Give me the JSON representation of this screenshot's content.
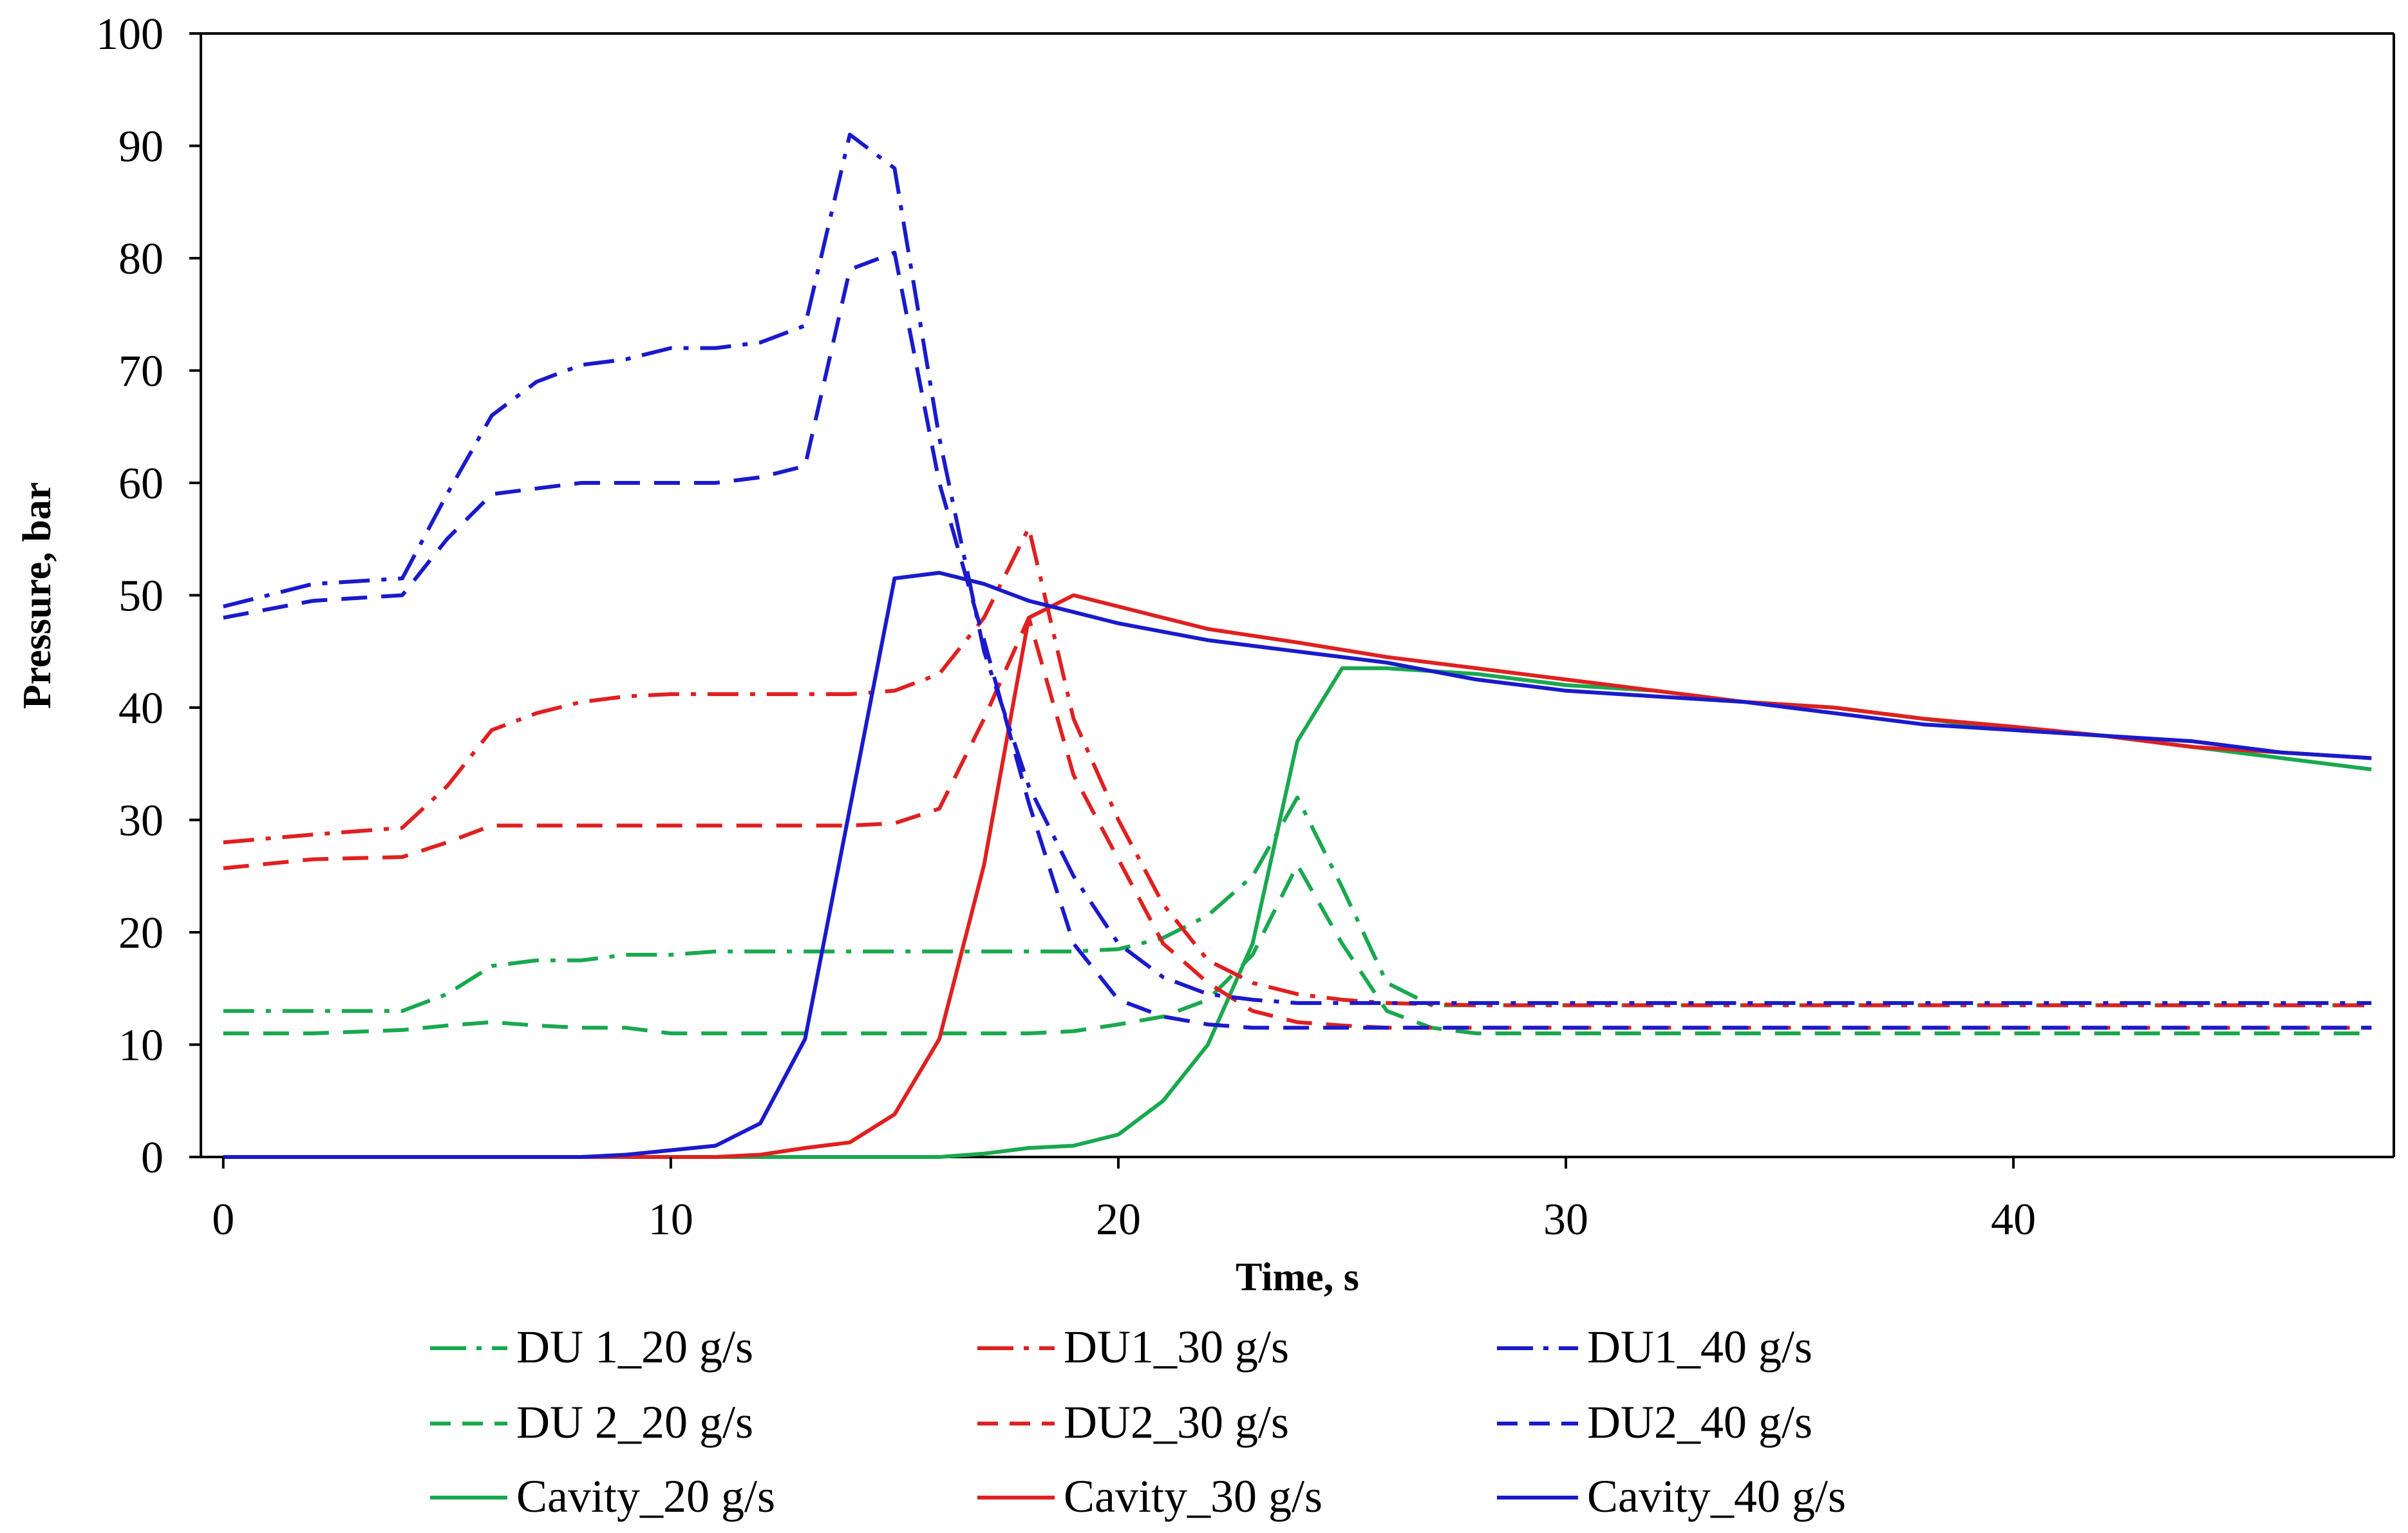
{
  "chart_data": {
    "type": "line",
    "title": "",
    "xlabel": "Time, s",
    "ylabel": "Pressure, bar",
    "xlim": [
      -0.5,
      48.5
    ],
    "ylim": [
      0,
      100
    ],
    "xticks": [
      0,
      10,
      20,
      30,
      40
    ],
    "yticks": [
      0,
      10,
      20,
      30,
      40,
      50,
      60,
      70,
      80,
      90,
      100
    ],
    "grid": false,
    "legend_position": "bottom",
    "series": [
      {
        "name": "DU 1_20 g/s",
        "color": "#1aa84f",
        "dash": "dashdot",
        "x": [
          0,
          2,
          4,
          5,
          6,
          7,
          8,
          9,
          10,
          11,
          12,
          13,
          14,
          15,
          16,
          17,
          18,
          19,
          20,
          21,
          22,
          23,
          24,
          25,
          26,
          27,
          28,
          30,
          32,
          34,
          36,
          38,
          40,
          42,
          44,
          46,
          48
        ],
        "y": [
          13,
          13,
          13,
          14.5,
          17,
          17.5,
          17.5,
          18,
          18,
          18.3,
          18.3,
          18.3,
          18.3,
          18.3,
          18.3,
          18.3,
          18.3,
          18.3,
          18.5,
          19.5,
          21.5,
          25,
          32,
          24,
          15.5,
          13.5,
          13.5,
          13.5,
          13.5,
          13.5,
          13.5,
          13.5,
          13.5,
          13.5,
          13.5,
          13.5,
          13.5
        ]
      },
      {
        "name": "DU 2_20 g/s",
        "color": "#1aa84f",
        "dash": "dash",
        "x": [
          0,
          2,
          4,
          5,
          6,
          7,
          8,
          9,
          10,
          12,
          14,
          16,
          18,
          19,
          20,
          21,
          22,
          23,
          24,
          25,
          26,
          27,
          28,
          30,
          32,
          34,
          36,
          38,
          40,
          42,
          44,
          46,
          48
        ],
        "y": [
          11,
          11,
          11.3,
          11.7,
          12,
          11.7,
          11.5,
          11.5,
          11,
          11,
          11,
          11,
          11,
          11.2,
          11.8,
          12.5,
          14,
          18,
          26,
          19,
          13,
          11.5,
          11,
          11,
          11,
          11,
          11,
          11,
          11,
          11,
          11,
          11,
          11
        ]
      },
      {
        "name": "Cavity_20 g/s",
        "color": "#1aa84f",
        "dash": "solid",
        "x": [
          0,
          14,
          16,
          17,
          18,
          19,
          20,
          21,
          22,
          23,
          24,
          25,
          26,
          28,
          30,
          32,
          34,
          36,
          38,
          40,
          42,
          44,
          46,
          48
        ],
        "y": [
          0,
          0,
          0,
          0.3,
          0.8,
          1,
          2,
          5,
          10,
          19,
          37,
          43.5,
          43.5,
          43,
          42,
          41.5,
          40.5,
          40,
          39,
          38,
          37.5,
          36.5,
          35.5,
          34.5
        ]
      },
      {
        "name": "DU1_30 g/s",
        "color": "#e02020",
        "dash": "dashdot",
        "x": [
          0,
          2,
          4,
          5,
          6,
          7,
          8,
          9,
          10,
          12,
          14,
          15,
          16,
          17,
          18,
          19,
          20,
          21,
          22,
          23,
          24,
          25,
          26,
          28,
          30,
          32,
          34,
          36,
          38,
          40,
          42,
          44,
          46,
          48
        ],
        "y": [
          28,
          28.7,
          29.3,
          33,
          38,
          39.5,
          40.5,
          41,
          41.2,
          41.2,
          41.2,
          41.5,
          43,
          48,
          56,
          39,
          30,
          22.5,
          17.5,
          15.5,
          14.5,
          14,
          13.7,
          13.5,
          13.5,
          13.5,
          13.5,
          13.5,
          13.5,
          13.5,
          13.5,
          13.5,
          13.5,
          13.5
        ]
      },
      {
        "name": "DU2_30 g/s",
        "color": "#e02020",
        "dash": "dash",
        "x": [
          0,
          2,
          4,
          5,
          6,
          7,
          8,
          10,
          12,
          14,
          15,
          16,
          17,
          18,
          19,
          20,
          21,
          22,
          23,
          24,
          25,
          26,
          28,
          30,
          32,
          34,
          36,
          38,
          40,
          42,
          44,
          46,
          48
        ],
        "y": [
          25.7,
          26.5,
          26.7,
          28,
          29.5,
          29.5,
          29.5,
          29.5,
          29.5,
          29.5,
          29.7,
          31,
          39,
          48,
          34,
          26.5,
          19,
          15.5,
          13,
          12,
          11.7,
          11.5,
          11.5,
          11.5,
          11.5,
          11.5,
          11.5,
          11.5,
          11.5,
          11.5,
          11.5,
          11.5,
          11.5
        ]
      },
      {
        "name": "Cavity_30 g/s",
        "color": "#e02020",
        "dash": "solid",
        "x": [
          0,
          11,
          12,
          13,
          14,
          15,
          16,
          17,
          18,
          19,
          20,
          22,
          24,
          26,
          28,
          30,
          32,
          34,
          36,
          38,
          40,
          42,
          44,
          46,
          48
        ],
        "y": [
          0,
          0,
          0.2,
          0.8,
          1.3,
          3.8,
          10.5,
          26,
          48,
          50,
          49,
          47,
          45.8,
          44.5,
          43.5,
          42.5,
          41.5,
          40.5,
          40,
          39,
          38.3,
          37.5,
          36.5,
          36,
          35.5
        ]
      },
      {
        "name": "DU1_40 g/s",
        "color": "#1a1acc",
        "dash": "dashdot",
        "x": [
          0,
          2,
          4,
          5,
          6,
          7,
          8,
          9,
          10,
          11,
          12,
          13,
          14,
          15,
          16,
          17,
          18,
          19,
          20,
          21,
          22,
          23,
          24,
          26,
          28,
          30,
          32,
          34,
          36,
          38,
          40,
          42,
          44,
          46,
          48
        ],
        "y": [
          49,
          51,
          51.5,
          59,
          66,
          69,
          70.5,
          71,
          72,
          72,
          72.5,
          74,
          91,
          88,
          64,
          45,
          33,
          25,
          19,
          16,
          14.5,
          14,
          13.7,
          13.7,
          13.7,
          13.7,
          13.7,
          13.7,
          13.7,
          13.7,
          13.7,
          13.7,
          13.7,
          13.7,
          13.7
        ]
      },
      {
        "name": "DU2_40 g/s",
        "color": "#1a1acc",
        "dash": "dash",
        "x": [
          0,
          2,
          4,
          5,
          6,
          7,
          8,
          9,
          10,
          11,
          12,
          13,
          14,
          15,
          16,
          17,
          18,
          19,
          20,
          21,
          22,
          23,
          24,
          26,
          28,
          30,
          32,
          34,
          36,
          38,
          40,
          42,
          44,
          46,
          48
        ],
        "y": [
          48,
          49.5,
          50,
          55,
          59,
          59.5,
          60,
          60,
          60,
          60,
          60.5,
          61.5,
          79,
          80.5,
          60,
          46,
          31.5,
          19,
          14,
          12.5,
          11.8,
          11.5,
          11.5,
          11.5,
          11.5,
          11.5,
          11.5,
          11.5,
          11.5,
          11.5,
          11.5,
          11.5,
          11.5,
          11.5,
          11.5
        ]
      },
      {
        "name": "Cavity_40 g/s",
        "color": "#1a1acc",
        "dash": "solid",
        "x": [
          0,
          8,
          9,
          10,
          11,
          12,
          13,
          14,
          15,
          16,
          17,
          18,
          20,
          22,
          24,
          26,
          28,
          30,
          32,
          34,
          36,
          38,
          40,
          42,
          44,
          46,
          48
        ],
        "y": [
          0,
          0,
          0.2,
          0.6,
          1,
          3,
          10.5,
          31,
          51.5,
          52,
          51,
          49.5,
          47.5,
          46,
          45,
          44,
          42.5,
          41.5,
          41,
          40.5,
          39.5,
          38.5,
          38,
          37.5,
          37,
          36,
          35.5
        ]
      }
    ]
  }
}
